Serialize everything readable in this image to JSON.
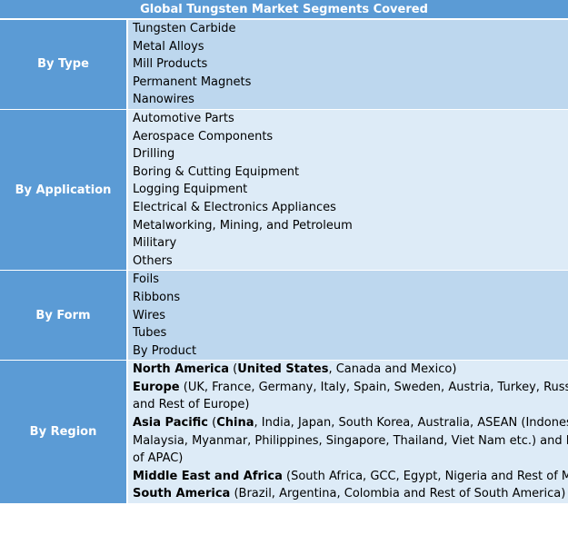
{
  "title": "Global Tungsten Market Segments Covered",
  "segments": [
    {
      "label": "By Type",
      "items": [
        "Tungsten Carbide",
        "Metal Alloys",
        "Mill Products",
        "Permanent Magnets",
        "Nanowires"
      ]
    },
    {
      "label": "By Application",
      "items": [
        "Automotive Parts",
        "Aerospace Components",
        "Drilling",
        "Boring & Cutting Equipment",
        "Logging Equipment",
        "Electrical & Electronics Appliances",
        "Metalworking, Mining, and Petroleum",
        "Military",
        "Others"
      ]
    },
    {
      "label": "By Form",
      "items": [
        "Foils",
        "Ribbons",
        "Wires",
        "Tubes",
        "By Product"
      ]
    },
    {
      "label": "By Region",
      "lines": [
        [
          {
            "b": "North America"
          },
          {
            "t": " ("
          },
          {
            "b": "United States"
          },
          {
            "t": ", Canada and Mexico)"
          }
        ],
        [
          {
            "b": "Europe"
          },
          {
            "t": " (UK, France, Germany, Italy, Spain, Sweden, Austria, Turkey, Russia"
          }
        ],
        [
          {
            "t": "and Rest of Europe)"
          }
        ],
        [
          {
            "b": "Asia Pacific"
          },
          {
            "t": " ("
          },
          {
            "b": "China"
          },
          {
            "t": ", India, Japan, South Korea, Australia, ASEAN (Indonesia,"
          }
        ],
        [
          {
            "t": "Malaysia, Myanmar, Philippines, Singapore, Thailand, Viet Nam etc.) and Rest"
          }
        ],
        [
          {
            "t": "of APAC)"
          }
        ],
        [
          {
            "b": "Middle East and Africa"
          },
          {
            "t": " (South Africa, GCC, Egypt, Nigeria and Rest of MEA)"
          }
        ],
        [
          {
            "b": "South America"
          },
          {
            "t": " (Brazil, Argentina, Colombia and Rest of South America)"
          }
        ]
      ]
    }
  ],
  "colors": {
    "header": "#5b9bd5",
    "row_dark": "#bdd7ee",
    "row_light": "#ddebf7"
  }
}
